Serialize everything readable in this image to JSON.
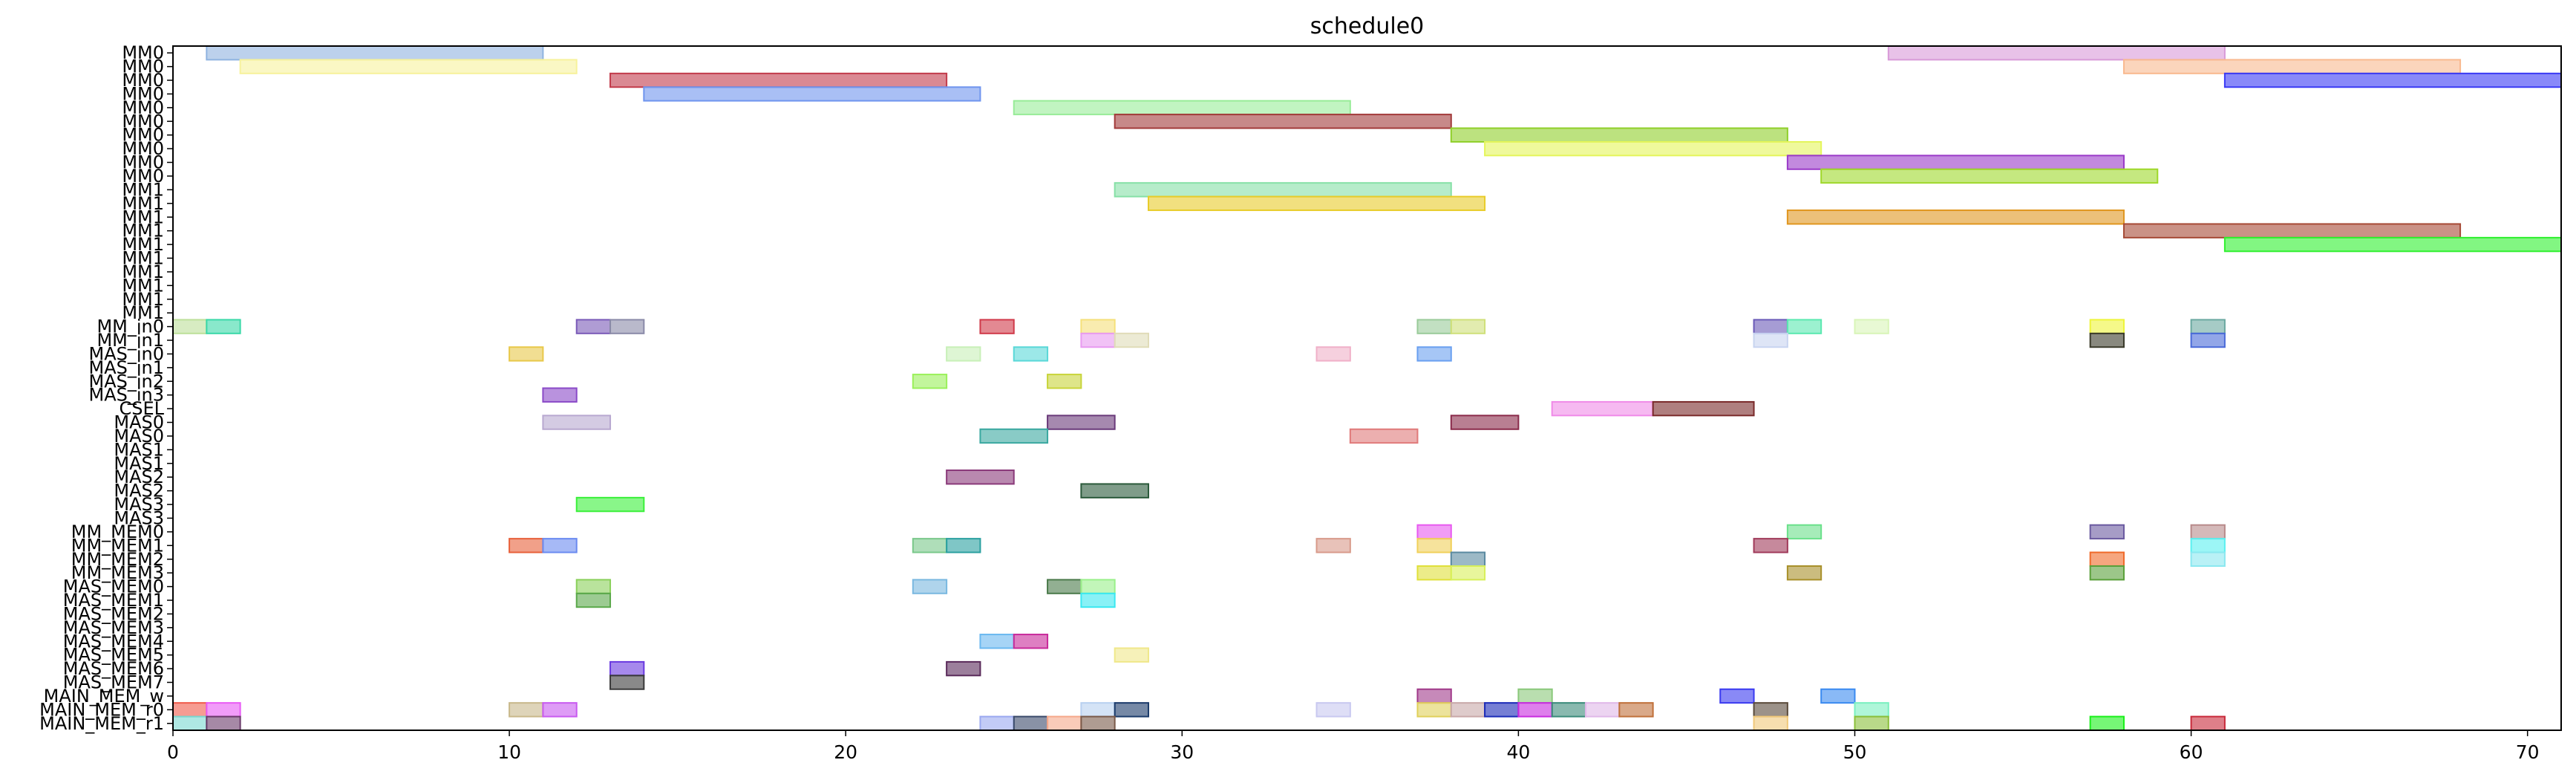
{
  "chart_data": {
    "type": "gantt",
    "title": "schedule0",
    "xlabel": "",
    "ylabel": "",
    "xlim": [
      0,
      71
    ],
    "x_ticks": [
      0,
      10,
      20,
      30,
      40,
      50,
      60,
      70
    ],
    "grid": false,
    "rows": [
      "MM0",
      "MM0",
      "MM0",
      "MM0",
      "MM0",
      "MM0",
      "MM0",
      "MM0",
      "MM0",
      "MM0",
      "MM1",
      "MM1",
      "MM1",
      "MM1",
      "MM1",
      "MM1",
      "MM1",
      "MM1",
      "MM1",
      "MM1",
      "MM_in0",
      "MM_in1",
      "MAS_in0",
      "MAS_in1",
      "MAS_in2",
      "MAS_in3",
      "CSEL",
      "MAS0",
      "MAS0",
      "MAS1",
      "MAS1",
      "MAS2",
      "MAS2",
      "MAS3",
      "MAS3",
      "MM_MEM0",
      "MM_MEM1",
      "MM_MEM2",
      "MM_MEM3",
      "MAS_MEM0",
      "MAS_MEM1",
      "MAS_MEM2",
      "MAS_MEM3",
      "MAS_MEM4",
      "MAS_MEM5",
      "MAS_MEM6",
      "MAS_MEM7",
      "MAIN_MEM_w",
      "MAIN_MEM_r0",
      "MAIN_MEM_r1"
    ],
    "bars": [
      {
        "row": 0,
        "start": 1,
        "end": 11,
        "color": "#8fb3e0"
      },
      {
        "row": 0,
        "start": 51,
        "end": 61,
        "color": "#d89ad8"
      },
      {
        "row": 1,
        "start": 2,
        "end": 12,
        "color": "#f7f29c"
      },
      {
        "row": 1,
        "start": 58,
        "end": 68,
        "color": "#f9b98f"
      },
      {
        "row": 2,
        "start": 13,
        "end": 23,
        "color": "#c23b4b"
      },
      {
        "row": 2,
        "start": 61,
        "end": 71,
        "color": "#3a3af5"
      },
      {
        "row": 3,
        "start": 14,
        "end": 24,
        "color": "#6f95ee"
      },
      {
        "row": 4,
        "start": 25,
        "end": 35,
        "color": "#98ec98"
      },
      {
        "row": 5,
        "start": 28,
        "end": 38,
        "color": "#a23a3a"
      },
      {
        "row": 6,
        "start": 38,
        "end": 48,
        "color": "#8fcf2a"
      },
      {
        "row": 7,
        "start": 39,
        "end": 49,
        "color": "#e4f55a"
      },
      {
        "row": 8,
        "start": 48,
        "end": 58,
        "color": "#9a3ac8"
      },
      {
        "row": 9,
        "start": 49,
        "end": 59,
        "color": "#9fd82b"
      },
      {
        "row": 10,
        "start": 28,
        "end": 38,
        "color": "#86e0a6"
      },
      {
        "row": 11,
        "start": 29,
        "end": 39,
        "color": "#e8cc2a"
      },
      {
        "row": 12,
        "start": 48,
        "end": 58,
        "color": "#e0961f"
      },
      {
        "row": 13,
        "start": 58,
        "end": 68,
        "color": "#a64a36"
      },
      {
        "row": 14,
        "start": 61,
        "end": 71,
        "color": "#2ff02f"
      },
      {
        "row": 20,
        "start": 0,
        "end": 1,
        "color": "#bde09a"
      },
      {
        "row": 20,
        "start": 1,
        "end": 2,
        "color": "#3ad8a8"
      },
      {
        "row": 20,
        "start": 12,
        "end": 13,
        "color": "#7a5ab8"
      },
      {
        "row": 20,
        "start": 13,
        "end": 14,
        "color": "#8a8aa8"
      },
      {
        "row": 20,
        "start": 24,
        "end": 25,
        "color": "#d03a4a"
      },
      {
        "row": 20,
        "start": 27,
        "end": 28,
        "color": "#f5e07a"
      },
      {
        "row": 20,
        "start": 37,
        "end": 38,
        "color": "#9acb9a"
      },
      {
        "row": 20,
        "start": 38,
        "end": 39,
        "color": "#cfe07a"
      },
      {
        "row": 20,
        "start": 47,
        "end": 48,
        "color": "#6a5ab8"
      },
      {
        "row": 20,
        "start": 48,
        "end": 49,
        "color": "#5ae8b0"
      },
      {
        "row": 20,
        "start": 50,
        "end": 51,
        "color": "#d8f5b8"
      },
      {
        "row": 20,
        "start": 57,
        "end": 58,
        "color": "#eef53a"
      },
      {
        "row": 20,
        "start": 60,
        "end": 61,
        "color": "#6aa8a0"
      },
      {
        "row": 21,
        "start": 27,
        "end": 28,
        "color": "#e89af0"
      },
      {
        "row": 21,
        "start": 28,
        "end": 29,
        "color": "#e0dcb8"
      },
      {
        "row": 21,
        "start": 47,
        "end": 48,
        "color": "#c8d4f0"
      },
      {
        "row": 21,
        "start": 57,
        "end": 58,
        "color": "#3a3a2a"
      },
      {
        "row": 21,
        "start": 60,
        "end": 61,
        "color": "#4a6ad8"
      },
      {
        "row": 22,
        "start": 10,
        "end": 11,
        "color": "#e8c84a"
      },
      {
        "row": 22,
        "start": 23,
        "end": 24,
        "color": "#c8f0b8"
      },
      {
        "row": 22,
        "start": 25,
        "end": 26,
        "color": "#5ad8d8"
      },
      {
        "row": 22,
        "start": 34,
        "end": 35,
        "color": "#f0b0c8"
      },
      {
        "row": 22,
        "start": 37,
        "end": 38,
        "color": "#6aa0f0"
      },
      {
        "row": 24,
        "start": 22,
        "end": 23,
        "color": "#9af05a"
      },
      {
        "row": 24,
        "start": 26,
        "end": 27,
        "color": "#c8d43a"
      },
      {
        "row": 25,
        "start": 11,
        "end": 12,
        "color": "#8a4ac8"
      },
      {
        "row": 26,
        "start": 41,
        "end": 44,
        "color": "#f08ae8"
      },
      {
        "row": 26,
        "start": 44,
        "end": 47,
        "color": "#7a2a2a"
      },
      {
        "row": 27,
        "start": 11,
        "end": 13,
        "color": "#b8a8d0"
      },
      {
        "row": 27,
        "start": 26,
        "end": 28,
        "color": "#6a3a7a"
      },
      {
        "row": 27,
        "start": 38,
        "end": 40,
        "color": "#8a2a4a"
      },
      {
        "row": 28,
        "start": 24,
        "end": 26,
        "color": "#3aa8a0"
      },
      {
        "row": 28,
        "start": 35,
        "end": 37,
        "color": "#e07a7a"
      },
      {
        "row": 31,
        "start": 23,
        "end": 25,
        "color": "#8a3a7a"
      },
      {
        "row": 32,
        "start": 27,
        "end": 29,
        "color": "#2a5a3a"
      },
      {
        "row": 33,
        "start": 12,
        "end": 14,
        "color": "#3af03a"
      },
      {
        "row": 35,
        "start": 37,
        "end": 38,
        "color": "#e85af0"
      },
      {
        "row": 35,
        "start": 48,
        "end": 49,
        "color": "#6ae08a"
      },
      {
        "row": 35,
        "start": 57,
        "end": 58,
        "color": "#6a5aa0"
      },
      {
        "row": 35,
        "start": 60,
        "end": 61,
        "color": "#b88a8a"
      },
      {
        "row": 36,
        "start": 10,
        "end": 11,
        "color": "#e8603a"
      },
      {
        "row": 36,
        "start": 11,
        "end": 12,
        "color": "#6a8af0"
      },
      {
        "row": 36,
        "start": 22,
        "end": 23,
        "color": "#7ac88a"
      },
      {
        "row": 36,
        "start": 23,
        "end": 24,
        "color": "#2aa0a0"
      },
      {
        "row": 36,
        "start": 34,
        "end": 35,
        "color": "#d89a8a"
      },
      {
        "row": 36,
        "start": 37,
        "end": 38,
        "color": "#f0d05a"
      },
      {
        "row": 36,
        "start": 47,
        "end": 48,
        "color": "#a03a5a"
      },
      {
        "row": 36,
        "start": 60,
        "end": 61,
        "color": "#5af0f0"
      },
      {
        "row": 37,
        "start": 38,
        "end": 39,
        "color": "#5a8aa0"
      },
      {
        "row": 37,
        "start": 57,
        "end": 58,
        "color": "#f06a2a"
      },
      {
        "row": 37,
        "start": 60,
        "end": 61,
        "color": "#8ae8f0"
      },
      {
        "row": 38,
        "start": 37,
        "end": 38,
        "color": "#e0e03a"
      },
      {
        "row": 38,
        "start": 38,
        "end": 39,
        "color": "#d8f05a"
      },
      {
        "row": 38,
        "start": 48,
        "end": 49,
        "color": "#a8902a"
      },
      {
        "row": 38,
        "start": 57,
        "end": 58,
        "color": "#5aa03a"
      },
      {
        "row": 39,
        "start": 12,
        "end": 13,
        "color": "#8ad05a"
      },
      {
        "row": 39,
        "start": 22,
        "end": 23,
        "color": "#7ab8e0"
      },
      {
        "row": 39,
        "start": 26,
        "end": 27,
        "color": "#4a7a4a"
      },
      {
        "row": 39,
        "start": 27,
        "end": 28,
        "color": "#9af08a"
      },
      {
        "row": 40,
        "start": 12,
        "end": 13,
        "color": "#5aa84a"
      },
      {
        "row": 40,
        "start": 27,
        "end": 28,
        "color": "#3ae8f0"
      },
      {
        "row": 43,
        "start": 24,
        "end": 25,
        "color": "#6ab8f0"
      },
      {
        "row": 43,
        "start": 25,
        "end": 26,
        "color": "#c82a9a"
      },
      {
        "row": 44,
        "start": 28,
        "end": 29,
        "color": "#f0e88a"
      },
      {
        "row": 45,
        "start": 13,
        "end": 14,
        "color": "#6a3ae0"
      },
      {
        "row": 45,
        "start": 23,
        "end": 24,
        "color": "#5a2a5a"
      },
      {
        "row": 46,
        "start": 13,
        "end": 14,
        "color": "#3a3a3a"
      },
      {
        "row": 47,
        "start": 37,
        "end": 38,
        "color": "#a03a8a"
      },
      {
        "row": 47,
        "start": 40,
        "end": 41,
        "color": "#8ac87a"
      },
      {
        "row": 47,
        "start": 46,
        "end": 47,
        "color": "#3a3af0"
      },
      {
        "row": 47,
        "start": 49,
        "end": 50,
        "color": "#3a8af0"
      },
      {
        "row": 48,
        "start": 0,
        "end": 1,
        "color": "#f05a4a"
      },
      {
        "row": 48,
        "start": 1,
        "end": 2,
        "color": "#e85af5"
      },
      {
        "row": 48,
        "start": 10,
        "end": 11,
        "color": "#c8b88a"
      },
      {
        "row": 48,
        "start": 11,
        "end": 12,
        "color": "#c85af0"
      },
      {
        "row": 48,
        "start": 27,
        "end": 28,
        "color": "#b8d0f0"
      },
      {
        "row": 48,
        "start": 28,
        "end": 29,
        "color": "#1a3a6a"
      },
      {
        "row": 48,
        "start": 34,
        "end": 35,
        "color": "#c8c8f0"
      },
      {
        "row": 48,
        "start": 37,
        "end": 38,
        "color": "#e0d05a"
      },
      {
        "row": 48,
        "start": 38,
        "end": 39,
        "color": "#c8a8a8"
      },
      {
        "row": 48,
        "start": 39,
        "end": 40,
        "color": "#1a2ab8"
      },
      {
        "row": 48,
        "start": 40,
        "end": 41,
        "color": "#c82ae0"
      },
      {
        "row": 48,
        "start": 41,
        "end": 42,
        "color": "#3a8a7a"
      },
      {
        "row": 48,
        "start": 42,
        "end": 43,
        "color": "#e0b8e8"
      },
      {
        "row": 48,
        "start": 43,
        "end": 44,
        "color": "#c0703a"
      },
      {
        "row": 48,
        "start": 47,
        "end": 48,
        "color": "#5a4a3a"
      },
      {
        "row": 48,
        "start": 50,
        "end": 51,
        "color": "#7af0c0"
      },
      {
        "row": 49,
        "start": 0,
        "end": 1,
        "color": "#7ad8d0"
      },
      {
        "row": 49,
        "start": 1,
        "end": 2,
        "color": "#6a3a6a"
      },
      {
        "row": 49,
        "start": 24,
        "end": 25,
        "color": "#9aa8f0"
      },
      {
        "row": 49,
        "start": 25,
        "end": 26,
        "color": "#3a4a6a"
      },
      {
        "row": 49,
        "start": 26,
        "end": 27,
        "color": "#f5a88a"
      },
      {
        "row": 49,
        "start": 27,
        "end": 28,
        "color": "#7a5a4a"
      },
      {
        "row": 49,
        "start": 47,
        "end": 48,
        "color": "#f0c87a"
      },
      {
        "row": 49,
        "start": 50,
        "end": 51,
        "color": "#8ac03a"
      },
      {
        "row": 49,
        "start": 57,
        "end": 58,
        "color": "#1af01a"
      },
      {
        "row": 49,
        "start": 60,
        "end": 61,
        "color": "#c82a3a"
      }
    ]
  }
}
